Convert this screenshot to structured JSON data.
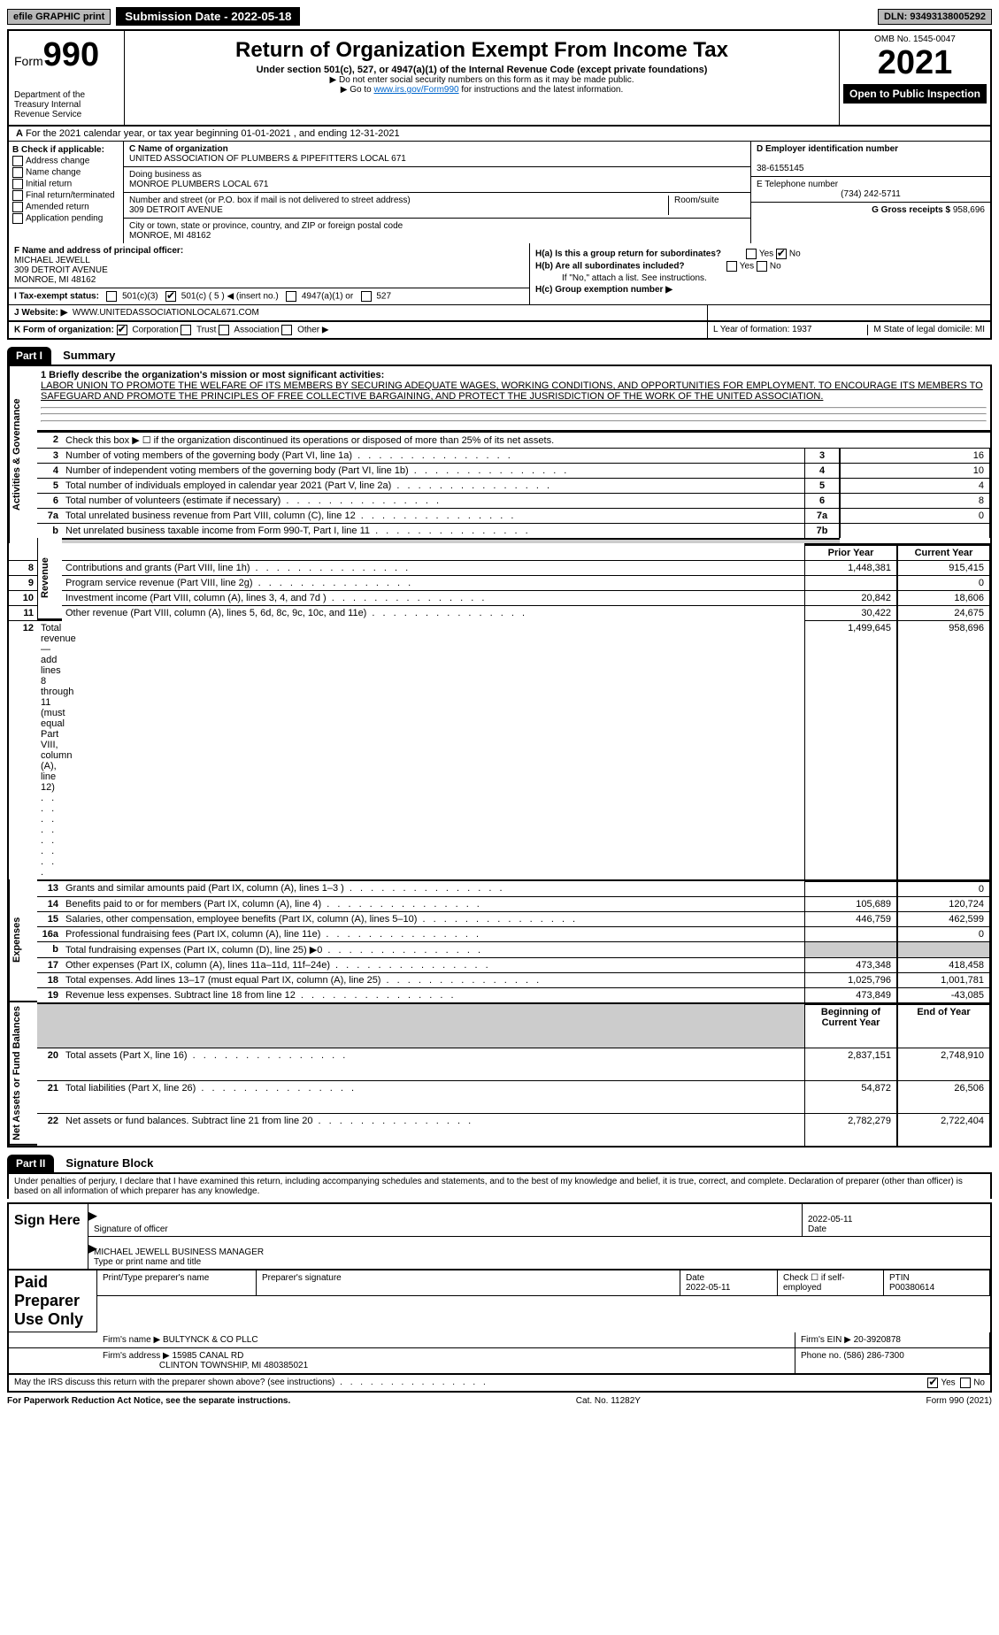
{
  "topbar": {
    "efile": "efile GRAPHIC print",
    "submission": "Submission Date - 2022-05-18",
    "dln": "DLN: 93493138005292"
  },
  "header": {
    "form": "Form",
    "formnum": "990",
    "title": "Return of Organization Exempt From Income Tax",
    "subtitle": "Under section 501(c), 527, or 4947(a)(1) of the Internal Revenue Code (except private foundations)",
    "note1": "▶ Do not enter social security numbers on this form as it may be made public.",
    "note2_pre": "▶ Go to ",
    "note2_link": "www.irs.gov/Form990",
    "note2_post": " for instructions and the latest information.",
    "dept": "Department of the Treasury\nInternal Revenue Service",
    "omb": "OMB No. 1545-0047",
    "year": "2021",
    "open": "Open to Public Inspection"
  },
  "periodA": "For the 2021 calendar year, or tax year beginning 01-01-2021     , and ending 12-31-2021",
  "sectionB": {
    "label": "B Check if applicable:",
    "opts": [
      "Address change",
      "Name change",
      "Initial return",
      "Final return/terminated",
      "Amended return",
      "Application pending"
    ]
  },
  "sectionC": {
    "name_label": "C Name of organization",
    "name": "UNITED ASSOCIATION OF PLUMBERS & PIPEFITTERS LOCAL 671",
    "dba_label": "Doing business as",
    "dba": "MONROE PLUMBERS LOCAL 671",
    "addr_label": "Number and street (or P.O. box if mail is not delivered to street address)",
    "addr": "309 DETROIT AVENUE",
    "room_label": "Room/suite",
    "city_label": "City or town, state or province, country, and ZIP or foreign postal code",
    "city": "MONROE, MI  48162"
  },
  "sectionD": {
    "label": "D Employer identification number",
    "val": "38-6155145"
  },
  "sectionE": {
    "label": "E Telephone number",
    "val": "(734) 242-5711"
  },
  "sectionG": {
    "label": "G Gross receipts $",
    "val": "958,696"
  },
  "sectionF": {
    "label": "F Name and address of principal officer:",
    "name": "MICHAEL JEWELL",
    "addr1": "309 DETROIT AVENUE",
    "addr2": "MONROE, MI  48162"
  },
  "sectionH": {
    "a": "H(a)  Is this a group return for subordinates?",
    "b": "H(b)  Are all subordinates included?",
    "b_note": "If \"No,\" attach a list. See instructions.",
    "c": "H(c)  Group exemption number ▶"
  },
  "sectionI": {
    "label": "I  Tax-exempt status:",
    "insert": "501(c) ( 5 ) ◀ (insert no.)"
  },
  "sectionJ": {
    "label": "J  Website: ▶",
    "val": "WWW.UNITEDASSOCIATIONLOCAL671.COM"
  },
  "sectionK": "K Form of organization:",
  "sectionL": {
    "l": "L Year of formation: 1937",
    "m": "M State of legal domicile: MI"
  },
  "part1": {
    "header": "Part I",
    "title": "Summary",
    "mission_label": "1  Briefly describe the organization's mission or most significant activities:",
    "mission": "LABOR UNION TO PROMOTE THE WELFARE OF ITS MEMBERS BY SECURING ADEQUATE WAGES, WORKING CONDITIONS, AND OPPORTUNITIES FOR EMPLOYMENT. TO ENCOURAGE ITS MEMBERS TO SAFEGUARD AND PROMOTE THE PRINCIPLES OF FREE COLLECTIVE BARGAINING, AND PROTECT THE JUSRISDICTION OF THE WORK OF THE UNITED ASSOCIATION.",
    "line2": "Check this box ▶ ☐  if the organization discontinued its operations or disposed of more than 25% of its net assets.",
    "gov_rows": [
      {
        "n": "3",
        "d": "Number of voting members of the governing body (Part VI, line 1a)",
        "box": "3",
        "v": "16"
      },
      {
        "n": "4",
        "d": "Number of independent voting members of the governing body (Part VI, line 1b)",
        "box": "4",
        "v": "10"
      },
      {
        "n": "5",
        "d": "Total number of individuals employed in calendar year 2021 (Part V, line 2a)",
        "box": "5",
        "v": "4"
      },
      {
        "n": "6",
        "d": "Total number of volunteers (estimate if necessary)",
        "box": "6",
        "v": "8"
      },
      {
        "n": "7a",
        "d": "Total unrelated business revenue from Part VIII, column (C), line 12",
        "box": "7a",
        "v": "0"
      },
      {
        "n": "b",
        "d": "Net unrelated business taxable income from Form 990-T, Part I, line 11",
        "box": "7b",
        "v": ""
      }
    ],
    "col_prior": "Prior Year",
    "col_current": "Current Year",
    "rev_rows": [
      {
        "n": "8",
        "d": "Contributions and grants (Part VIII, line 1h)",
        "p": "1,448,381",
        "c": "915,415"
      },
      {
        "n": "9",
        "d": "Program service revenue (Part VIII, line 2g)",
        "p": "",
        "c": "0"
      },
      {
        "n": "10",
        "d": "Investment income (Part VIII, column (A), lines 3, 4, and 7d )",
        "p": "20,842",
        "c": "18,606"
      },
      {
        "n": "11",
        "d": "Other revenue (Part VIII, column (A), lines 5, 6d, 8c, 9c, 10c, and 11e)",
        "p": "30,422",
        "c": "24,675"
      },
      {
        "n": "12",
        "d": "Total revenue—add lines 8 through 11 (must equal Part VIII, column (A), line 12)",
        "p": "1,499,645",
        "c": "958,696"
      }
    ],
    "exp_rows": [
      {
        "n": "13",
        "d": "Grants and similar amounts paid (Part IX, column (A), lines 1–3 )",
        "p": "",
        "c": "0"
      },
      {
        "n": "14",
        "d": "Benefits paid to or for members (Part IX, column (A), line 4)",
        "p": "105,689",
        "c": "120,724"
      },
      {
        "n": "15",
        "d": "Salaries, other compensation, employee benefits (Part IX, column (A), lines 5–10)",
        "p": "446,759",
        "c": "462,599"
      },
      {
        "n": "16a",
        "d": "Professional fundraising fees (Part IX, column (A), line 11e)",
        "p": "",
        "c": "0"
      },
      {
        "n": "b",
        "d": "Total fundraising expenses (Part IX, column (D), line 25) ▶0",
        "p": "GRAY",
        "c": "GRAY"
      },
      {
        "n": "17",
        "d": "Other expenses (Part IX, column (A), lines 11a–11d, 11f–24e)",
        "p": "473,348",
        "c": "418,458"
      },
      {
        "n": "18",
        "d": "Total expenses. Add lines 13–17 (must equal Part IX, column (A), line 25)",
        "p": "1,025,796",
        "c": "1,001,781"
      },
      {
        "n": "19",
        "d": "Revenue less expenses. Subtract line 18 from line 12",
        "p": "473,849",
        "c": "-43,085"
      }
    ],
    "col_beg": "Beginning of Current Year",
    "col_end": "End of Year",
    "net_rows": [
      {
        "n": "20",
        "d": "Total assets (Part X, line 16)",
        "p": "2,837,151",
        "c": "2,748,910"
      },
      {
        "n": "21",
        "d": "Total liabilities (Part X, line 26)",
        "p": "54,872",
        "c": "26,506"
      },
      {
        "n": "22",
        "d": "Net assets or fund balances. Subtract line 21 from line 20",
        "p": "2,782,279",
        "c": "2,722,404"
      }
    ],
    "side_labels": [
      "Activities & Governance",
      "Revenue",
      "Expenses",
      "Net Assets or Fund Balances"
    ]
  },
  "part2": {
    "header": "Part II",
    "title": "Signature Block",
    "penalty": "Under penalties of perjury, I declare that I have examined this return, including accompanying schedules and statements, and to the best of my knowledge and belief, it is true, correct, and complete. Declaration of preparer (other than officer) is based on all information of which preparer has any knowledge.",
    "sign_here": "Sign Here",
    "sig_officer": "Signature of officer",
    "sig_date": "2022-05-11",
    "date_label": "Date",
    "officer_name": "MICHAEL JEWELL  BUSINESS MANAGER",
    "type_label": "Type or print name and title"
  },
  "paid": {
    "label": "Paid Preparer Use Only",
    "h_name": "Print/Type preparer's name",
    "h_sig": "Preparer's signature",
    "h_date": "Date",
    "date": "2022-05-11",
    "check": "Check ☐ if self-employed",
    "ptin_label": "PTIN",
    "ptin": "P00380614",
    "firm_name_label": "Firm's name    ▶",
    "firm_name": "BULTYNCK & CO PLLC",
    "firm_ein_label": "Firm's EIN ▶",
    "firm_ein": "20-3920878",
    "firm_addr_label": "Firm's address ▶",
    "firm_addr1": "15985 CANAL RD",
    "firm_addr2": "CLINTON TOWNSHIP, MI  480385021",
    "phone_label": "Phone no.",
    "phone": "(586) 286-7300"
  },
  "discuss": "May the IRS discuss this return with the preparer shown above? (see instructions)",
  "footer": {
    "left": "For Paperwork Reduction Act Notice, see the separate instructions.",
    "mid": "Cat. No. 11282Y",
    "right": "Form 990 (2021)"
  }
}
